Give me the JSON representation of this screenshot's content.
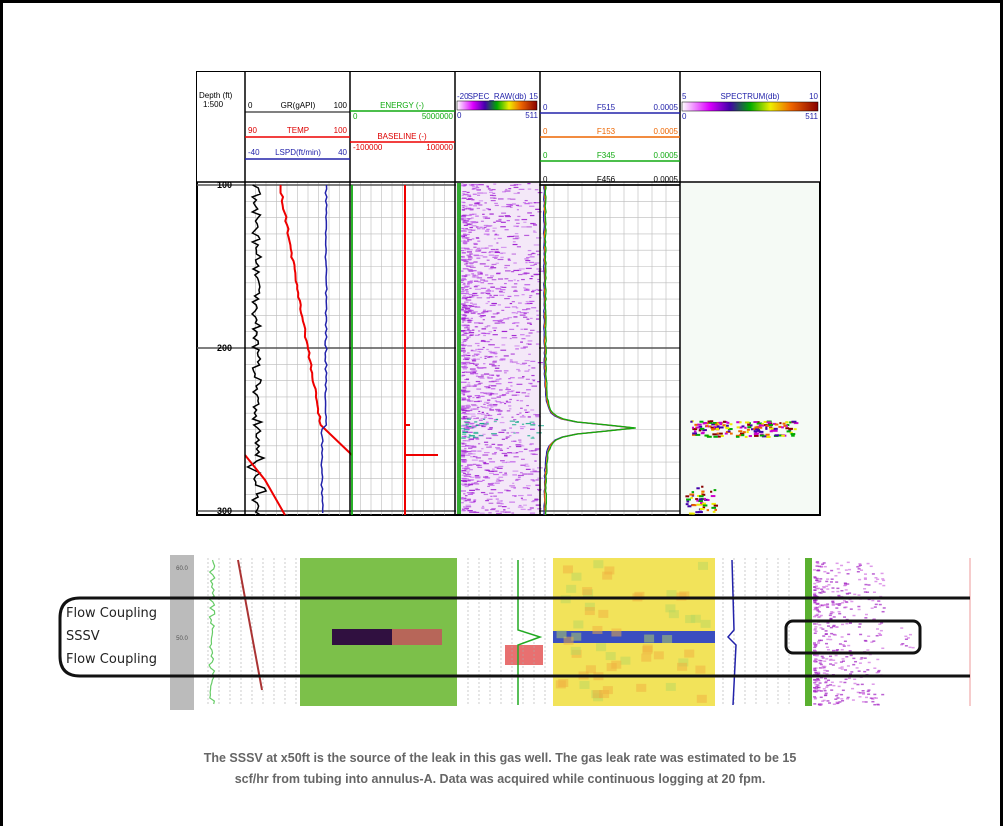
{
  "figure": {
    "depth_header": {
      "label": "Depth (ft)",
      "scale": "1:500"
    },
    "track1": {
      "gr": {
        "min": "0",
        "name": "GR(gAPI)",
        "max": "100"
      },
      "temp": {
        "min": "90",
        "name": "TEMP",
        "max": "100"
      },
      "lspd": {
        "min": "-40",
        "name": "LSPD(ft/min)",
        "max": "40"
      }
    },
    "track2": {
      "energy": {
        "name": "ENERGY   (-)",
        "min": "0",
        "max": "5000000"
      },
      "baseline": {
        "name": "BASELINE   (-)",
        "min": "-100000",
        "max": "100000"
      }
    },
    "track3": {
      "min": "-20",
      "name": "SPEC_RAW(db)",
      "max": "15",
      "bin_min": "0",
      "bin_max": "511"
    },
    "track4": [
      {
        "min": "0",
        "name": "F515",
        "max": "0.0005"
      },
      {
        "min": "0",
        "name": "F153",
        "max": "0.0005"
      },
      {
        "min": "0",
        "name": "F345",
        "max": "0.0005"
      },
      {
        "min": "0",
        "name": "F456",
        "max": "0.0005"
      }
    ],
    "track5": {
      "min": "5",
      "name": "SPECTRUM(db)",
      "max": "10",
      "bin_min": "0",
      "bin_max": "511"
    },
    "depth_labels": [
      "100",
      "200",
      "300"
    ]
  },
  "lower_figure": {
    "depth_labels": [
      "60.0",
      "50.0"
    ],
    "labels": [
      "Flow Coupling",
      "SSSV",
      "Flow Coupling"
    ]
  },
  "caption": [
    "The SSSV at x50ft is the source of the leak in this gas well. The gas leak rate was estimated to be 15",
    "scf/hr from tubing into annulus-A. Data was acquired while continuous logging at 20 fpm."
  ]
}
